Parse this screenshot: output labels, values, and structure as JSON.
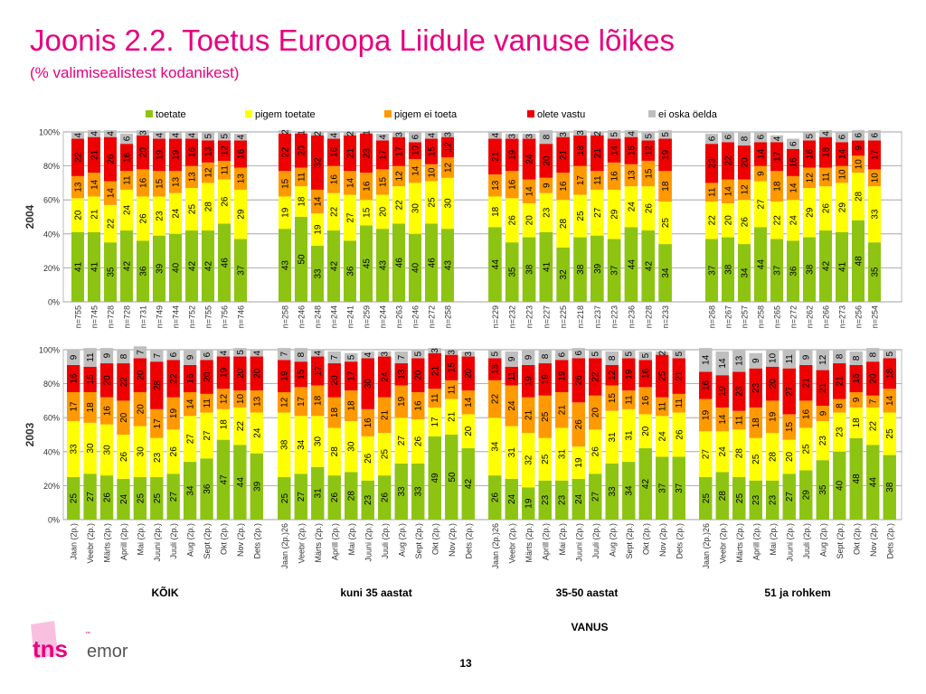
{
  "title": "Joonis 2.2. Toetus Euroopa Liidule vanuse lõikes",
  "subtitle": "(% valimisealistest kodanikest)",
  "page_number": "13",
  "logo": {
    "text_main": "tns",
    "text_sub": "emor",
    "tm": "™"
  },
  "colors": {
    "title": "#e6007e",
    "toetate": "#8dc412",
    "pigem toetate": "#ffff00",
    "pigem ei toeta": "#ff9900",
    "olete vastu": "#ee0000",
    "ei oska öelda": "#bfbfbf",
    "logo": "#e6007e"
  },
  "chart_data": [
    {
      "type": "bar",
      "stacked": true,
      "row_label": "2004",
      "legend": [
        "toetate",
        "pigem toetate",
        "pigem ei toeta",
        "olete vastu",
        "ei oska öelda"
      ],
      "legend_position": "top",
      "ylim": [
        0,
        100
      ],
      "yticks": [
        "0%",
        "20%",
        "40%",
        "60%",
        "80%",
        "100%"
      ],
      "groups": [
        {
          "categories": [
            "n=755",
            "n=745",
            "n=728",
            "n=728",
            "n=731",
            "n=749",
            "n=744",
            "n=752",
            "n=755",
            "n=756",
            "n=746"
          ],
          "series": [
            {
              "name": "toetate",
              "values": [
                41,
                41,
                35,
                42,
                36,
                39,
                40,
                42,
                42,
                46,
                37
              ]
            },
            {
              "name": "pigem toetate",
              "values": [
                20,
                21,
                22,
                24,
                26,
                23,
                24,
                25,
                28,
                26,
                29
              ]
            },
            {
              "name": "pigem ei toeta",
              "values": [
                13,
                14,
                14,
                11,
                16,
                15,
                13,
                13,
                12,
                11,
                13
              ]
            },
            {
              "name": "olete vastu",
              "values": [
                22,
                21,
                26,
                16,
                20,
                19,
                19,
                16,
                13,
                12,
                16
              ]
            },
            {
              "name": "ei oska öelda",
              "values": [
                4,
                4,
                4,
                6,
                3,
                4,
                4,
                4,
                5,
                5,
                4
              ]
            }
          ]
        },
        {
          "categories": [
            "n=258",
            "n=246",
            "n=248",
            "n=244",
            "n=241",
            "n=259",
            "n=244",
            "n=263",
            "n=246",
            "n=272",
            "n=258"
          ],
          "series": [
            {
              "name": "toetate",
              "values": [
                43,
                50,
                33,
                42,
                36,
                45,
                43,
                46,
                40,
                46,
                43
              ]
            },
            {
              "name": "pigem toetate",
              "values": [
                19,
                18,
                19,
                22,
                27,
                15,
                20,
                22,
                30,
                25,
                30
              ]
            },
            {
              "name": "pigem ei toeta",
              "values": [
                15,
                11,
                14,
                16,
                14,
                16,
                15,
                12,
                14,
                10,
                12
              ]
            },
            {
              "name": "olete vastu",
              "values": [
                22,
                20,
                32,
                16,
                21,
                23,
                17,
                17,
                10,
                15,
                12
              ]
            },
            {
              "name": "ei oska öelda",
              "values": [
                2,
                1,
                2,
                4,
                2,
                1,
                4,
                3,
                6,
                4,
                3
              ]
            }
          ]
        },
        {
          "categories": [
            "n=229",
            "n=232",
            "n=223",
            "n=227",
            "n=225",
            "n=218",
            "n=237",
            "n=223",
            "n=236",
            "n=228",
            "n=233"
          ],
          "series": [
            {
              "name": "toetate",
              "values": [
                44,
                35,
                38,
                41,
                32,
                38,
                39,
                37,
                44,
                42,
                34
              ]
            },
            {
              "name": "pigem toetate",
              "values": [
                18,
                26,
                20,
                23,
                28,
                25,
                27,
                29,
                24,
                26,
                25
              ]
            },
            {
              "name": "pigem ei toeta",
              "values": [
                13,
                16,
                14,
                9,
                16,
                17,
                11,
                16,
                13,
                15,
                18
              ]
            },
            {
              "name": "olete vastu",
              "values": [
                21,
                19,
                24,
                20,
                21,
                18,
                21,
                14,
                16,
                12,
                19
              ]
            },
            {
              "name": "ei oska öelda",
              "values": [
                4,
                3,
                3,
                8,
                3,
                3,
                2,
                5,
                4,
                5,
                5
              ]
            }
          ]
        },
        {
          "categories": [
            "n=268",
            "n=267",
            "n=257",
            "n=258",
            "n=265",
            "n=272",
            "n=262",
            "n=266",
            "n=273",
            "n=256",
            "n=254"
          ],
          "series": [
            {
              "name": "toetate",
              "values": [
                37,
                38,
                34,
                44,
                37,
                36,
                38,
                42,
                41,
                48,
                35
              ]
            },
            {
              "name": "pigem toetate",
              "values": [
                22,
                20,
                26,
                27,
                22,
                24,
                29,
                26,
                29,
                28,
                33
              ]
            },
            {
              "name": "pigem ei toeta",
              "values": [
                11,
                14,
                12,
                9,
                18,
                14,
                12,
                11,
                10,
                10,
                10
              ]
            },
            {
              "name": "olete vastu",
              "values": [
                23,
                22,
                20,
                14,
                17,
                16,
                16,
                18,
                14,
                9,
                17
              ]
            },
            {
              "name": "ei oska öelda",
              "values": [
                6,
                6,
                8,
                6,
                4,
                6,
                5,
                4,
                6,
                6,
                6
              ]
            }
          ]
        }
      ]
    },
    {
      "type": "bar",
      "stacked": true,
      "row_label": "2003",
      "ylim": [
        0,
        100
      ],
      "yticks": [
        "0%",
        "20%",
        "40%",
        "60%",
        "80%",
        "100%"
      ],
      "groups": [
        {
          "group_label": "KÕIK",
          "categories": [
            "Jaan (2p.)",
            "Veebr (2p.)",
            "Märts (2p.)",
            "Aprill (2p.)",
            "Mai (2p.)",
            "Juuni (2p.)",
            "Juuli (2p.)",
            "Aug (2p.)",
            "Sept (2p.)",
            "Okt (2p.)",
            "Nov (2p.)",
            "Dets (2p.)"
          ],
          "series": [
            {
              "name": "toetate",
              "values": [
                25,
                27,
                26,
                24,
                25,
                25,
                27,
                34,
                36,
                47,
                44,
                39
              ]
            },
            {
              "name": "pigem toetate",
              "values": [
                33,
                30,
                30,
                26,
                30,
                23,
                26,
                27,
                27,
                18,
                22,
                24
              ]
            },
            {
              "name": "pigem ei toeta",
              "values": [
                17,
                18,
                16,
                20,
                20,
                17,
                19,
                14,
                11,
                12,
                10,
                13
              ]
            },
            {
              "name": "olete vastu",
              "values": [
                16,
                15,
                20,
                22,
                20,
                28,
                22,
                16,
                20,
                19,
                20,
                20
              ]
            },
            {
              "name": "ei oska öelda",
              "values": [
                9,
                11,
                9,
                8,
                7,
                7,
                6,
                9,
                6,
                4,
                5,
                4
              ]
            }
          ]
        },
        {
          "group_label": "kuni 35 aastat",
          "categories": [
            "Jaan (2p.)26",
            "Veebr (2p.)",
            "Märts (2p.)",
            "Aprill (2p.)",
            "Mai (2p.)",
            "Juuni (2p.)",
            "Juuli (2p.)",
            "Aug (2p.)",
            "Sept (2p.)",
            "Okt (2p.)",
            "Nov (2p.)",
            "Dets (2p.)"
          ],
          "series": [
            {
              "name": "toetate",
              "values": [
                25,
                27,
                31,
                26,
                28,
                23,
                26,
                33,
                33,
                49,
                50,
                42
              ]
            },
            {
              "name": "pigem toetate",
              "values": [
                38,
                34,
                30,
                28,
                30,
                26,
                25,
                27,
                26,
                17,
                21,
                20
              ]
            },
            {
              "name": "pigem ei toeta",
              "values": [
                12,
                17,
                18,
                18,
                18,
                16,
                21,
                19,
                16,
                11,
                11,
                14
              ]
            },
            {
              "name": "olete vastu",
              "values": [
                19,
                15,
                17,
                20,
                17,
                30,
                24,
                13,
                20,
                21,
                15,
                20
              ]
            },
            {
              "name": "ei oska öelda",
              "values": [
                7,
                8,
                4,
                7,
                5,
                4,
                3,
                7,
                5,
                3,
                3,
                3
              ]
            }
          ]
        },
        {
          "group_label": "35-50 aastat",
          "categories": [
            "Jaan (2p.)26",
            "Veebr (2p.)",
            "Märts (2p.)",
            "Aprill (2p.)",
            "Mai (2p.)",
            "Juuni (2p.)",
            "Juuli (2p.)",
            "Aug (2p.)",
            "Sept (2p.)",
            "Okt (2p.)",
            "Nov (2p.)",
            "Dets (2p.)"
          ],
          "series": [
            {
              "name": "toetate",
              "values": [
                26,
                24,
                19,
                23,
                23,
                24,
                27,
                33,
                34,
                42,
                37,
                37
              ]
            },
            {
              "name": "pigem toetate",
              "values": [
                34,
                31,
                32,
                25,
                31,
                19,
                26,
                31,
                31,
                20,
                24,
                26
              ]
            },
            {
              "name": "pigem ei toeta",
              "values": [
                22,
                24,
                21,
                25,
                21,
                26,
                20,
                15,
                11,
                16,
                11,
                11
              ]
            },
            {
              "name": "olete vastu",
              "values": [
                13,
                11,
                19,
                19,
                19,
                26,
                22,
                12,
                19,
                16,
                25,
                21
              ]
            },
            {
              "name": "ei oska öelda",
              "values": [
                5,
                9,
                9,
                8,
                6,
                6,
                5,
                8,
                5,
                5,
                2,
                5
              ]
            }
          ]
        },
        {
          "group_label": "51 ja rohkem",
          "categories": [
            "Jaan (2p.)26",
            "Veebr (2p.)",
            "Märts (2p.)",
            "Aprill (2p.)",
            "Mai (2p.)",
            "Juuni (2p.)",
            "Juuli (2p.)",
            "Aug (2p.)",
            "Sept (2p.)",
            "Okt (2p.)",
            "Nov (2p.)",
            "Dets (2p.)"
          ],
          "series": [
            {
              "name": "toetate",
              "values": [
                25,
                28,
                25,
                23,
                23,
                27,
                29,
                35,
                40,
                48,
                44,
                38
              ]
            },
            {
              "name": "pigem toetate",
              "values": [
                27,
                24,
                28,
                25,
                28,
                20,
                25,
                23,
                23,
                18,
                22,
                25
              ]
            },
            {
              "name": "pigem ei toeta",
              "values": [
                19,
                14,
                11,
                18,
                19,
                15,
                16,
                9,
                8,
                9,
                7,
                14
              ]
            },
            {
              "name": "olete vastu",
              "values": [
                16,
                19,
                23,
                23,
                20,
                27,
                21,
                21,
                21,
                16,
                20,
                18
              ]
            },
            {
              "name": "ei oska öelda",
              "values": [
                14,
                14,
                13,
                9,
                10,
                11,
                9,
                12,
                8,
                8,
                8,
                5
              ]
            }
          ]
        }
      ]
    }
  ],
  "x_axis_title": "VANUS"
}
